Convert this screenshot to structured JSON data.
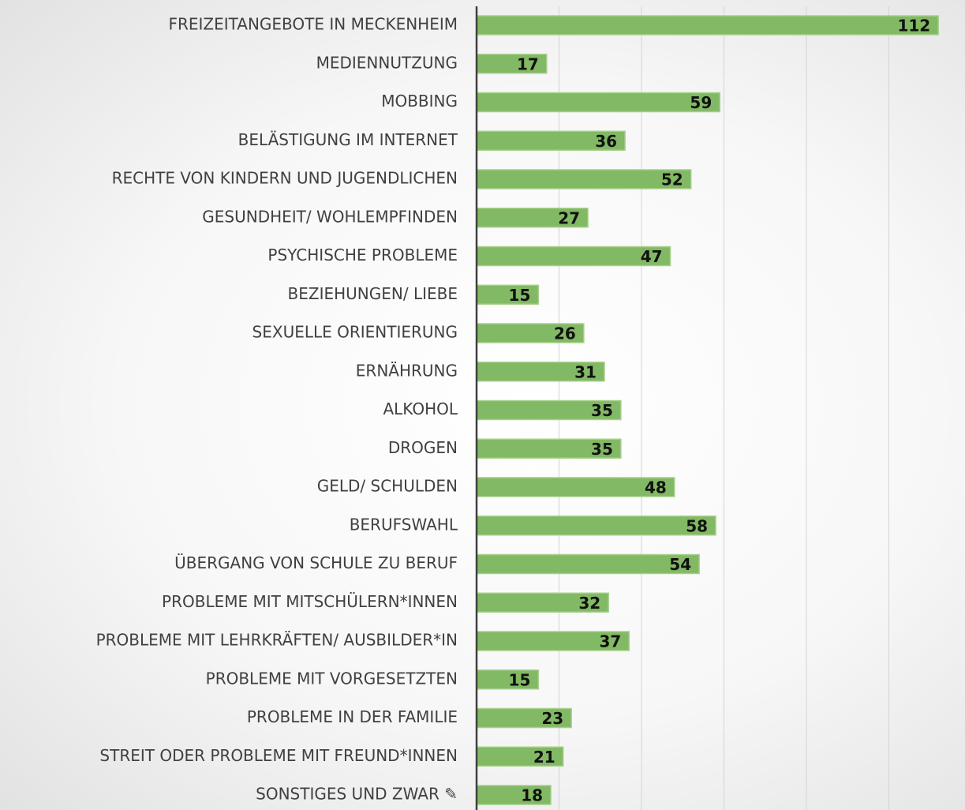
{
  "chart_data": {
    "type": "barh",
    "categories": [
      "FREIZEITANGEBOTE IN MECKENHEIM",
      "MEDIENNUTZUNG",
      "MOBBING",
      "BELÄSTIGUNG IM INTERNET",
      "RECHTE VON KINDERN UND JUGENDLICHEN",
      "GESUNDHEIT/ WOHLEMPFINDEN",
      "PSYCHISCHE PROBLEME",
      "BEZIEHUNGEN/ LIEBE",
      "SEXUELLE ORIENTIERUNG",
      "ERNÄHRUNG",
      "ALKOHOL",
      "DROGEN",
      "GELD/ SCHULDEN",
      "BERUFSWAHL",
      "ÜBERGANG VON SCHULE ZU BERUF",
      "PROBLEME MIT MITSCHÜLERN*INNEN",
      "PROBLEME MIT LEHRKRÄFTEN/ AUSBILDER*IN",
      "PROBLEME MIT VORGESETZTEN",
      "PROBLEME IN DER FAMILIE",
      "STREIT ODER PROBLEME MIT FREUND*INNEN",
      "SONSTIGES UND ZWAR ✎"
    ],
    "values": [
      112,
      17,
      59,
      36,
      52,
      27,
      47,
      15,
      26,
      31,
      35,
      35,
      48,
      58,
      54,
      32,
      37,
      15,
      23,
      21,
      18
    ],
    "color": "#82b964",
    "xlim": [
      0,
      118
    ],
    "xticks": [
      0,
      20,
      40,
      60,
      80,
      100
    ],
    "grid": true
  }
}
